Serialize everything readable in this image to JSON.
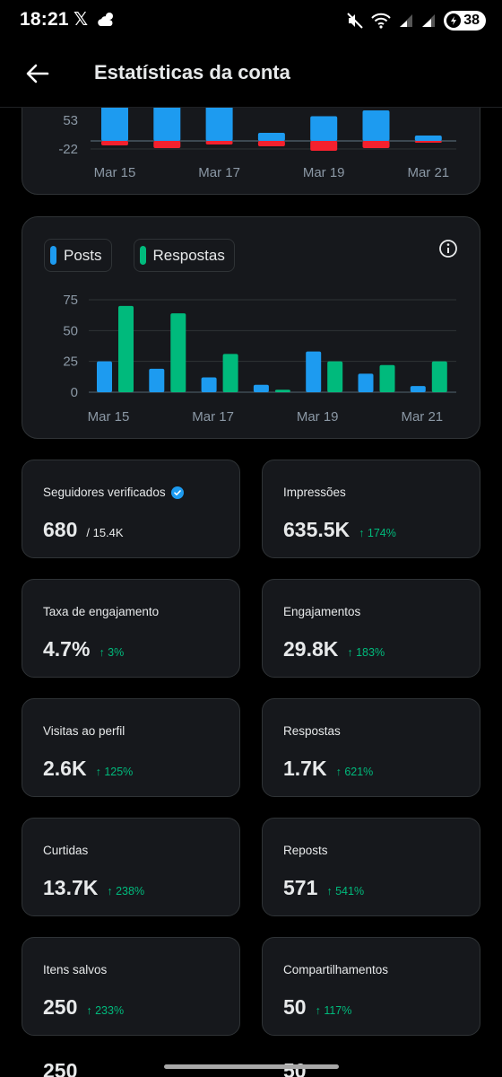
{
  "status_bar": {
    "time": "18:21",
    "battery": "38",
    "icons": [
      "x-logo-icon",
      "weather-icon",
      "mute-icon",
      "wifi-icon",
      "signal-icon",
      "signal-icon",
      "battery-icon"
    ]
  },
  "header": {
    "title": "Estatísticas da conta",
    "back_icon": "arrow-left-icon"
  },
  "chart1": {
    "chart_data": {
      "type": "bar",
      "y_ticks": [
        "53",
        "-22"
      ],
      "x_ticks": [
        "Mar 15",
        "Mar 17",
        "Mar 19",
        "Mar 21"
      ],
      "categories": [
        "Mar 15",
        "Mar 16",
        "Mar 17",
        "Mar 18",
        "Mar 19",
        "Mar 20",
        "Mar 21"
      ],
      "series": [
        {
          "values": [
            110,
            110,
            110,
            18,
            55,
            68,
            12
          ],
          "color": "#1d9bf0"
        },
        {
          "values": [
            -10,
            -16,
            -8,
            -12,
            -22,
            -16,
            -4
          ],
          "color": "#f4212e"
        }
      ]
    }
  },
  "chart2": {
    "legend": [
      {
        "label": "Posts",
        "color": "#1d9bf0"
      },
      {
        "label": "Respostas",
        "color": "#00ba7c"
      }
    ],
    "chart_data": {
      "type": "bar",
      "categories": [
        "Mar 15",
        "Mar 16",
        "Mar 17",
        "Mar 18",
        "Mar 19",
        "Mar 20",
        "Mar 21"
      ],
      "x_ticks": [
        "Mar 15",
        "Mar 17",
        "Mar 19",
        "Mar 21"
      ],
      "y_ticks": [
        0,
        25,
        50,
        75
      ],
      "ylim": [
        0,
        75
      ],
      "series": [
        {
          "name": "Posts",
          "values": [
            25,
            19,
            12,
            6,
            33,
            15,
            5
          ]
        },
        {
          "name": "Respostas",
          "values": [
            70,
            64,
            31,
            2,
            25,
            22,
            25
          ]
        }
      ]
    }
  },
  "stats": [
    {
      "label": "Seguidores verificados",
      "value": "680",
      "sub": "/ 15.4K",
      "verified": true
    },
    {
      "label": "Impressões",
      "value": "635.5K",
      "change": "↑ 174%"
    },
    {
      "label": "Taxa de engajamento",
      "value": "4.7%",
      "change": "↑ 3%"
    },
    {
      "label": "Engajamentos",
      "value": "29.8K",
      "change": "↑ 183%"
    },
    {
      "label": "Visitas ao perfil",
      "value": "2.6K",
      "change": "↑ 125%"
    },
    {
      "label": "Respostas",
      "value": "1.7K",
      "change": "↑ 621%"
    },
    {
      "label": "Curtidas",
      "value": "13.7K",
      "change": "↑ 238%"
    },
    {
      "label": "Reposts",
      "value": "571",
      "change": "↑ 541%"
    },
    {
      "label": "Itens salvos",
      "value": "250",
      "change": "↑ 233%"
    },
    {
      "label": "Compartilhamentos",
      "value": "50",
      "change": "↑ 117%"
    }
  ]
}
